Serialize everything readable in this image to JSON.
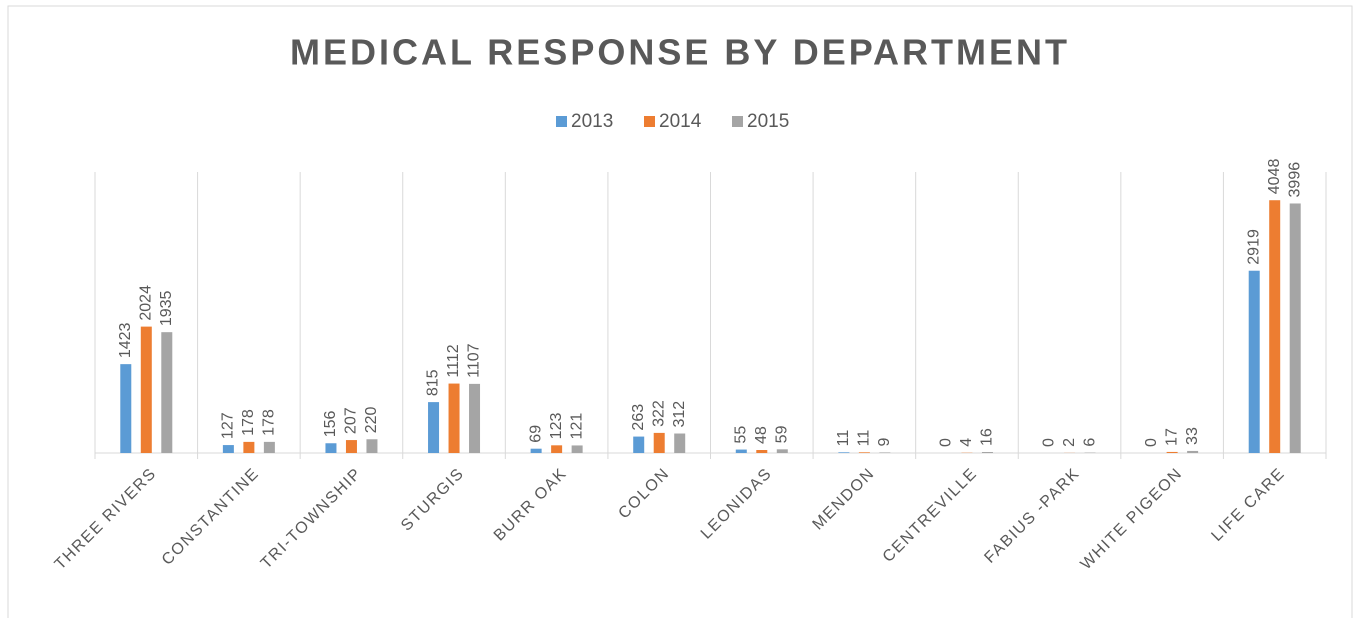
{
  "chart_data": {
    "type": "bar",
    "title": "MEDICAL RESPONSE BY DEPARTMENT",
    "categories": [
      "THREE RIVERS",
      "CONSTANTINE",
      "TRI-TOWNSHIP",
      "STURGIS",
      "BURR OAK",
      "COLON",
      "LEONIDAS",
      "MENDON",
      "CENTREVILLE",
      "FABIUS -PARK",
      "WHITE PIGEON",
      "LIFE CARE"
    ],
    "series": [
      {
        "name": "2013",
        "color": "#5b9bd5",
        "values": [
          1423,
          127,
          156,
          815,
          69,
          263,
          55,
          11,
          0,
          0,
          0,
          2919
        ]
      },
      {
        "name": "2014",
        "color": "#ed7d31",
        "values": [
          2024,
          178,
          207,
          1112,
          123,
          322,
          48,
          11,
          4,
          2,
          17,
          4048
        ]
      },
      {
        "name": "2015",
        "color": "#a5a5a5",
        "values": [
          1935,
          178,
          220,
          1107,
          121,
          312,
          59,
          9,
          16,
          6,
          33,
          3996
        ]
      }
    ],
    "ylim": [
      0,
      4500
    ],
    "legend": "top"
  }
}
